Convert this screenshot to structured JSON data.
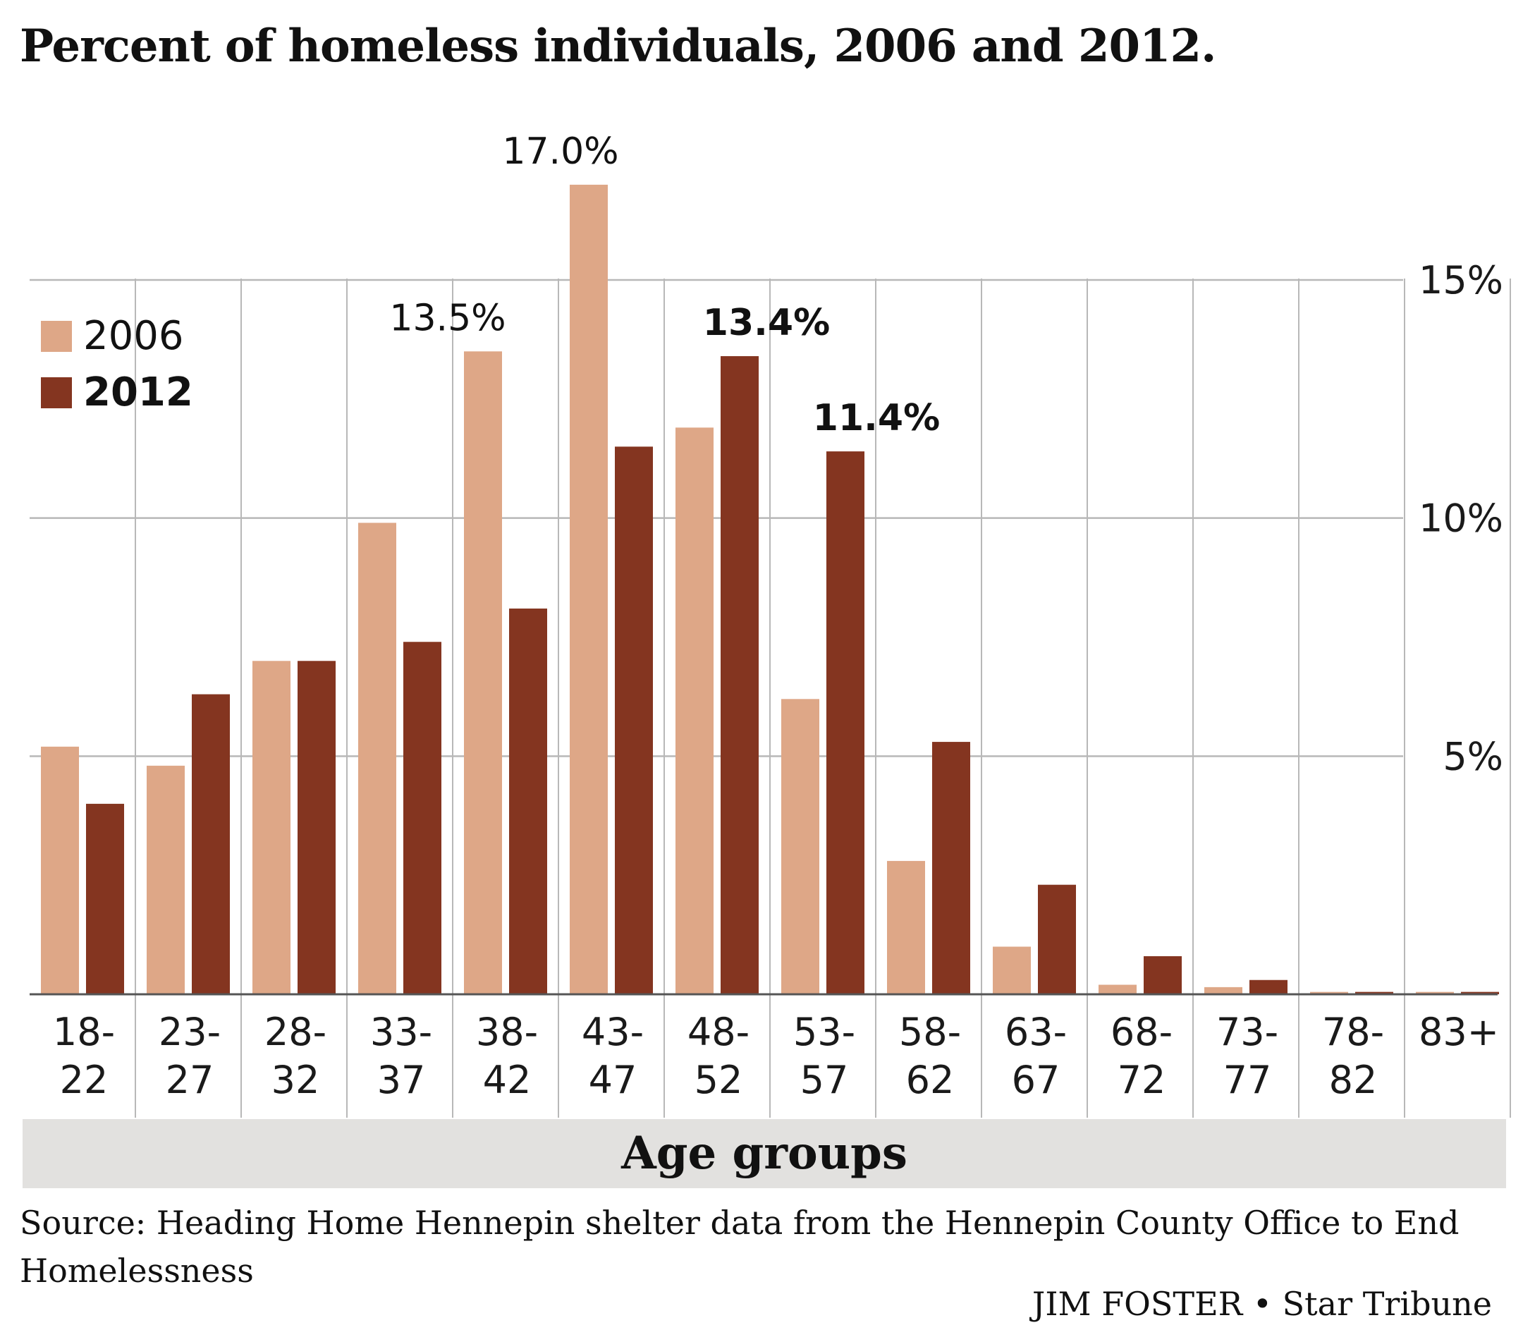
{
  "title": "Percent of homeless individuals, 2006 and 2012.",
  "colors": {
    "s2006": "#dea787",
    "s2012": "#843520",
    "grid": "#b8b8b8",
    "axis": "#555555",
    "band": "#e2e1df"
  },
  "chart_data": {
    "type": "bar",
    "title": "Percent of homeless individuals, 2006 and 2012.",
    "xlabel": "Age groups",
    "ylabel": "",
    "ylim": [
      0,
      15
    ],
    "yticks": [
      5,
      10,
      15
    ],
    "ytick_labels": [
      "5%",
      "10%",
      "15%"
    ],
    "grid": true,
    "legend_position": "top-left",
    "categories": [
      "18-22",
      "23-27",
      "28-32",
      "33-37",
      "38-42",
      "43-47",
      "48-52",
      "53-57",
      "58-62",
      "63-67",
      "68-72",
      "73-77",
      "78-82",
      "83+"
    ],
    "category_labels": [
      [
        "18-",
        "22"
      ],
      [
        "23-",
        "27"
      ],
      [
        "28-",
        "32"
      ],
      [
        "33-",
        "37"
      ],
      [
        "38-",
        "42"
      ],
      [
        "43-",
        "47"
      ],
      [
        "48-",
        "52"
      ],
      [
        "53-",
        "57"
      ],
      [
        "58-",
        "62"
      ],
      [
        "63-",
        "67"
      ],
      [
        "68-",
        "72"
      ],
      [
        "73-",
        "77"
      ],
      [
        "78-",
        "82"
      ],
      [
        "83+"
      ]
    ],
    "series": [
      {
        "name": "2006",
        "bold": false,
        "values": [
          5.2,
          4.8,
          7.0,
          9.9,
          13.5,
          17.0,
          11.9,
          6.2,
          2.8,
          1.0,
          0.2,
          0.15,
          0.05,
          0.05
        ]
      },
      {
        "name": "2012",
        "bold": true,
        "values": [
          4.0,
          6.3,
          7.0,
          7.4,
          8.1,
          11.5,
          13.4,
          11.4,
          5.3,
          2.3,
          0.8,
          0.3,
          0.05,
          0.05
        ]
      }
    ],
    "data_labels": [
      {
        "series": 0,
        "index": 4,
        "text": "13.5%",
        "bold": false
      },
      {
        "series": 0,
        "index": 5,
        "text": "17.0%",
        "bold": false
      },
      {
        "series": 1,
        "index": 6,
        "text": "13.4%",
        "bold": true
      },
      {
        "series": 1,
        "index": 7,
        "text": "11.4%",
        "bold": true
      }
    ]
  },
  "source": "Source: Heading Home Hennepin shelter data from the Hennepin County Office to End Homelessness",
  "credit": "JIM FOSTER • Star Tribune"
}
